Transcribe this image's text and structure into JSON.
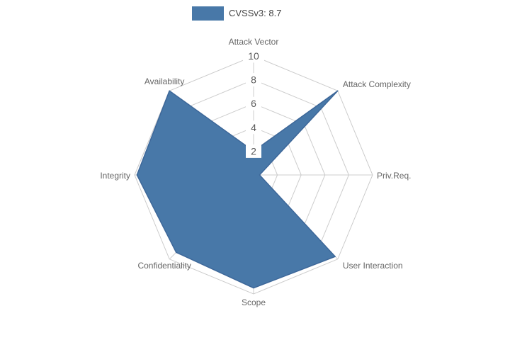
{
  "chart_data": {
    "type": "radar",
    "title": "CVSSv3: 8.7",
    "categories": [
      "Attack Vector",
      "Attack Complexity",
      "Priv.Req.",
      "User Interaction",
      "Scope",
      "Confidentiality",
      "Integrity",
      "Availability"
    ],
    "series": [
      {
        "name": "CVSSv3: 8.7",
        "values": [
          2,
          10,
          0.5,
          9.7,
          9.5,
          9.2,
          9.8,
          10
        ]
      }
    ],
    "ticks": [
      2,
      4,
      6,
      8,
      10
    ],
    "rlim": [
      0,
      10
    ],
    "grid": true,
    "grid_shape": "polygon",
    "legend_position": "top-center",
    "colors": {
      "fill": "#4878A8",
      "edge": "#3D6799",
      "grid": "#CCCCCC",
      "axis_label": "#666666",
      "tick_label": "#595959",
      "tick_box": "#FFFFFF",
      "legend_text": "#444444",
      "background": "#FFFFFF"
    }
  }
}
